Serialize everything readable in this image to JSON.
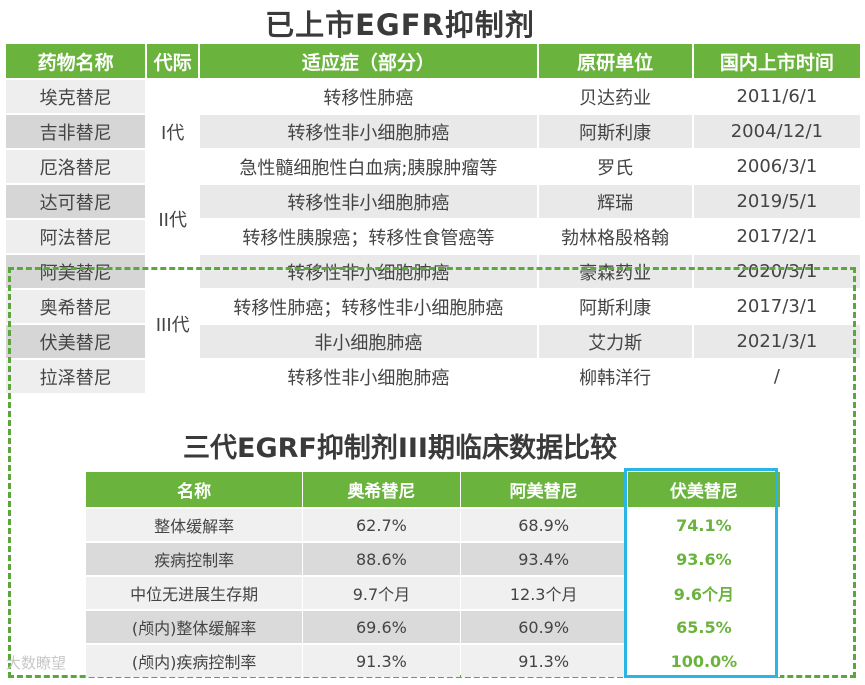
{
  "title": "已上市EGFR抑制剂",
  "table1": {
    "headers": [
      "药物名称",
      "代际",
      "适应症（部分）",
      "原研单位",
      "国内上市时间"
    ],
    "rows": [
      {
        "name": "埃克替尼",
        "indication": "转移性肺癌",
        "company": "贝达药业",
        "date": "2011/6/1"
      },
      {
        "name": "吉非替尼",
        "indication": "转移性非小细胞肺癌",
        "company": "阿斯利康",
        "date": "2004/12/1"
      },
      {
        "name": "厄洛替尼",
        "indication": "急性髓细胞性白血病;胰腺肿瘤等",
        "company": "罗氏",
        "date": "2006/3/1"
      },
      {
        "name": "达可替尼",
        "indication": "转移性非小细胞肺癌",
        "company": "辉瑞",
        "date": "2019/5/1"
      },
      {
        "name": "阿法替尼",
        "indication": "转移性胰腺癌；转移性食管癌等",
        "company": "勃林格殷格翰",
        "date": "2017/2/1"
      },
      {
        "name": "阿美替尼",
        "indication": "转移性非小细胞肺癌",
        "company": "豪森药业",
        "date": "2020/3/1"
      },
      {
        "name": "奥希替尼",
        "indication": "转移性肺癌；转移性非小细胞肺癌",
        "company": "阿斯利康",
        "date": "2017/3/1"
      },
      {
        "name": "伏美替尼",
        "indication": "非小细胞肺癌",
        "company": "艾力斯",
        "date": "2021/3/1"
      },
      {
        "name": "拉泽替尼",
        "indication": "转移性非小细胞肺癌",
        "company": "柳韩洋行",
        "date": "/"
      }
    ],
    "generations": [
      "I代",
      "II代",
      "III代"
    ]
  },
  "title2": "三代EGRF抑制剂III期临床数据比较",
  "table2": {
    "headers": [
      "名称",
      "奥希替尼",
      "阿美替尼",
      "伏美替尼"
    ],
    "rows": [
      {
        "metric": "整体缓解率",
        "v1": "62.7%",
        "v2": "68.9%",
        "v3": "74.1%"
      },
      {
        "metric": "疾病控制率",
        "v1": "88.6%",
        "v2": "93.4%",
        "v3": "93.6%"
      },
      {
        "metric": "中位无进展生存期",
        "v1": "9.7个月",
        "v2": "12.3个月",
        "v3": "9.6个月"
      },
      {
        "metric": "(颅内)整体缓解率",
        "v1": "69.6%",
        "v2": "60.9%",
        "v3": "65.5%"
      },
      {
        "metric": "(颅内)疾病控制率",
        "v1": "91.3%",
        "v2": "91.3%",
        "v3": "100.0%"
      }
    ]
  },
  "watermark": "大数瞭望",
  "colors": {
    "green": "#6ab33c",
    "highlight_border": "#29b6e6"
  }
}
